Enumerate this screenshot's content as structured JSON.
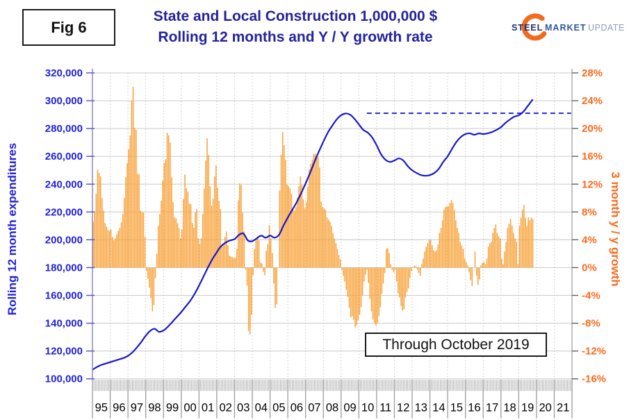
{
  "figure_label": "Fig 6",
  "title_line1": "State and Local Construction 1,000,000 $",
  "title_line2": "Rolling 12 months and Y / Y growth rate",
  "annotation": "Through October 2019",
  "logo": {
    "word1": "STEEL",
    "word2": "MARKET",
    "word3": "UPDATE",
    "word1_color": "#1D3076",
    "word2_color": "#2F55A4",
    "word3_color": "#8C9BC0",
    "swoosh_color": "#F26A1B"
  },
  "colors": {
    "bar": "#F8A33C",
    "line": "#1616CF",
    "dashed": "#2424CC",
    "left_label": "#2121DD",
    "right_label": "#FD6A1D",
    "title": "#23239B",
    "grid": "#CACACA",
    "year_grid": "#C3C3C3",
    "axis_left": "#8A8AC2",
    "axis_right": "#9A9A9A",
    "hatch": "#ABABAB",
    "year_sep": "#9A9A9A"
  },
  "chart_data": {
    "type": "bar+line combo",
    "title": "State and Local Construction 1,000,000 $ — Rolling 12 months and Y / Y growth rate",
    "left_axis": {
      "label": "Rolling 12 month expenditures",
      "tick_labels": [
        "320,000",
        "300,000",
        "280,000",
        "260,000",
        "240,000",
        "220,000",
        "200,000",
        "180,000",
        "160,000",
        "140,000",
        "120,000",
        "100,000"
      ],
      "tick_values": [
        320,
        300,
        280,
        260,
        240,
        220,
        200,
        180,
        160,
        140,
        120,
        100
      ],
      "min": 100000,
      "max": 320000,
      "unit": "thousand $ (1,000,000 $)"
    },
    "right_axis": {
      "label": "3 month y / y growth",
      "tick_labels": [
        "28%",
        "24%",
        "20%",
        "16%",
        "12%",
        "8%",
        "4%",
        "0%",
        "-4%",
        "-8%",
        "-12%",
        "-16%"
      ],
      "tick_values": [
        28,
        24,
        20,
        16,
        12,
        8,
        4,
        0,
        -4,
        -8,
        -12,
        -16
      ],
      "min": -16,
      "max": 28,
      "unit": "%"
    },
    "x_axis": {
      "year_labels": [
        "95",
        "96",
        "97",
        "98",
        "99",
        "00",
        "01",
        "02",
        "03",
        "04",
        "05",
        "06",
        "07",
        "08",
        "09",
        "10",
        "11",
        "12",
        "13",
        "14",
        "15",
        "16",
        "17",
        "18",
        "19",
        "20",
        "21"
      ],
      "start_year": 1995,
      "end_year": 2022,
      "grid": "dotted-vertical-per-year"
    },
    "bars": {
      "series_name": "3 month y/y growth rate (%)",
      "resolution": "monthly",
      "last_month": "October 2019",
      "monthly_by_year": {
        "1995": [
          6.6,
          8.1,
          10.6,
          14.1,
          13.6,
          13.1,
          10.0,
          8.2,
          6.4,
          5.9,
          5.4,
          5.3
        ],
        "1996": [
          5.5,
          4.4,
          3.9,
          4.2,
          4.8,
          5.3,
          5.7,
          6.5,
          7.7,
          10.0,
          13.0,
          15.0
        ],
        "1997": [
          17.0,
          19.0,
          24.0,
          26.0,
          20.1,
          19.8,
          13.5,
          13.4,
          8.2,
          8.0,
          7.9,
          4.4
        ],
        "1998": [
          -0.5,
          -1.6,
          -2.9,
          -4.4,
          -6.3,
          -5.4,
          -1.5,
          2.0,
          6.0,
          7.7,
          9.6,
          12.5
        ],
        "1999": [
          15.0,
          15.6,
          19.4,
          19.0,
          18.0,
          13.0,
          9.4,
          7.2,
          7.1,
          6.4,
          5.7,
          4.2
        ],
        "2000": [
          5.5,
          9.9,
          13.4,
          11.4,
          10.9,
          9.2,
          9.1,
          6.4,
          5.7,
          7.9,
          8.4,
          4.2
        ],
        "2001": [
          3.4,
          4.2,
          7.7,
          11.4,
          15.4,
          18.6,
          16.2,
          11.7,
          8.9,
          9.9,
          13.1,
          14.7
        ],
        "2002": [
          11.5,
          9.6,
          8.4,
          3.2,
          3.4,
          4.4,
          5.2,
          3.2,
          1.7,
          1.6,
          1.5,
          1.4
        ],
        "2003": [
          1.4,
          2.7,
          9.7,
          12.1,
          11.9,
          7.9,
          5.2,
          -0.3,
          -2.6,
          -9.1,
          -9.6,
          -6.8
        ],
        "2004": [
          -1.1,
          2.7,
          3.9,
          4.4,
          3.9,
          0.7,
          0.6,
          -0.6,
          -1.1,
          2.4,
          3.4,
          6.1
        ],
        "2005": [
          4.2,
          2.1,
          -2.3,
          -5.8,
          -5.3,
          0.0,
          11.1,
          16.2,
          19.5,
          17.6,
          15.5,
          11.9
        ],
        "2006": [
          11.7,
          11.4,
          10.6,
          8.6,
          8.2,
          8.7,
          10.1,
          11.7,
          13.1,
          11.9,
          9.8,
          8.5
        ],
        "2007": [
          9.4,
          11.6,
          14.1,
          14.9,
          15.5,
          16.3,
          16.4,
          16.0,
          15.9,
          14.4,
          9.5,
          8.7
        ],
        "2008": [
          8.5,
          8.3,
          7.2,
          6.9,
          6.6,
          6.0,
          5.0,
          4.2,
          3.5,
          2.7,
          1.8,
          1.2
        ],
        "2009": [
          -0.3,
          -1.2,
          -2.0,
          -3.2,
          -4.2,
          -5.8,
          -7.2,
          -7.0,
          -7.5,
          -8.6,
          -8.3,
          -7.6
        ],
        "2010": [
          -6.8,
          -5.7,
          -4.0,
          -2.0,
          -1.0,
          -0.3,
          -2.2,
          -4.5,
          -6.3,
          -7.5,
          -8.0,
          -8.3
        ],
        "2011": [
          -8.0,
          -7.0,
          -5.7,
          -3.8,
          -2.3,
          -0.8,
          2.7,
          2.8,
          2.1,
          0.5,
          -0.3,
          -0.7
        ],
        "2012": [
          -0.3,
          -2.0,
          -3.7,
          -4.3,
          -5.5,
          -6.2,
          -6.0,
          -4.3,
          -3.5,
          -3.0,
          -1.5,
          -0.5
        ],
        "2013": [
          0.0,
          0.3,
          0.2,
          -0.3,
          -0.8,
          -1.2,
          0.5,
          1.3,
          2.3,
          3.0,
          3.5,
          4.0
        ],
        "2014": [
          4.0,
          3.2,
          2.5,
          2.3,
          2.5,
          3.3,
          5.0,
          5.7,
          6.8,
          8.3,
          8.7,
          8.8
        ],
        "2015": [
          8.8,
          9.3,
          9.7,
          9.3,
          8.3,
          6.8,
          5.7,
          5.0,
          3.7,
          3.2,
          2.7,
          1.3
        ],
        "2016": [
          0.8,
          0.3,
          -0.7,
          -1.8,
          -2.7,
          0.0,
          2.3,
          -1.2,
          -2.5,
          -1.7,
          0.3,
          0.7
        ],
        "2017": [
          0.8,
          0.5,
          1.3,
          3.0,
          3.5,
          3.7,
          5.0,
          5.7,
          6.2,
          5.0,
          4.5,
          4.2
        ],
        "2018": [
          1.3,
          0.5,
          2.3,
          3.7,
          5.7,
          6.3,
          7.0,
          6.0,
          5.0,
          4.2,
          3.7,
          0.5
        ],
        "2019": [
          6.0,
          7.2,
          8.3,
          9.0,
          7.2,
          6.0,
          7.2,
          6.8,
          7.2,
          7.0
        ]
      }
    },
    "line": {
      "series_name": "Rolling 12 month expenditures",
      "unit": "thousands",
      "start_year": 1995.0,
      "step_years": 0.25,
      "quarterly_values": [
        106.5,
        108.5,
        110,
        111,
        112,
        113,
        114,
        115,
        116.5,
        119,
        122.5,
        126.5,
        131,
        134.5,
        136,
        133.8,
        134.8,
        137.5,
        141,
        144.5,
        148,
        152,
        156,
        161,
        167,
        173.5,
        180,
        186,
        191,
        195.5,
        198,
        199.5,
        200.5,
        203.5,
        204.5,
        199.5,
        199,
        201,
        203,
        201.5,
        203,
        201.5,
        203.5,
        210,
        216,
        221.5,
        227,
        233.5,
        240.5,
        248,
        256,
        263.5,
        270.5,
        277,
        282,
        286.5,
        289.5,
        290.8,
        290,
        287,
        283,
        279,
        277,
        273.5,
        268,
        261.5,
        257.5,
        256,
        257,
        258.5,
        257,
        253,
        250,
        248,
        246.5,
        246,
        246.5,
        248,
        251,
        256,
        260,
        265.5,
        270.5,
        274,
        276,
        276.5,
        275.5,
        276.5,
        276,
        276.5,
        277.5,
        279,
        281,
        284,
        286.5,
        288.5,
        289.5,
        292,
        296
      ],
      "end_point": [
        2019.79,
        301
      ]
    },
    "reference_line": {
      "style": "dashed",
      "value_thousands": 291,
      "approx_right_axis_pct": 22,
      "from_year": 2010.45,
      "to_year": 2021.95
    }
  }
}
